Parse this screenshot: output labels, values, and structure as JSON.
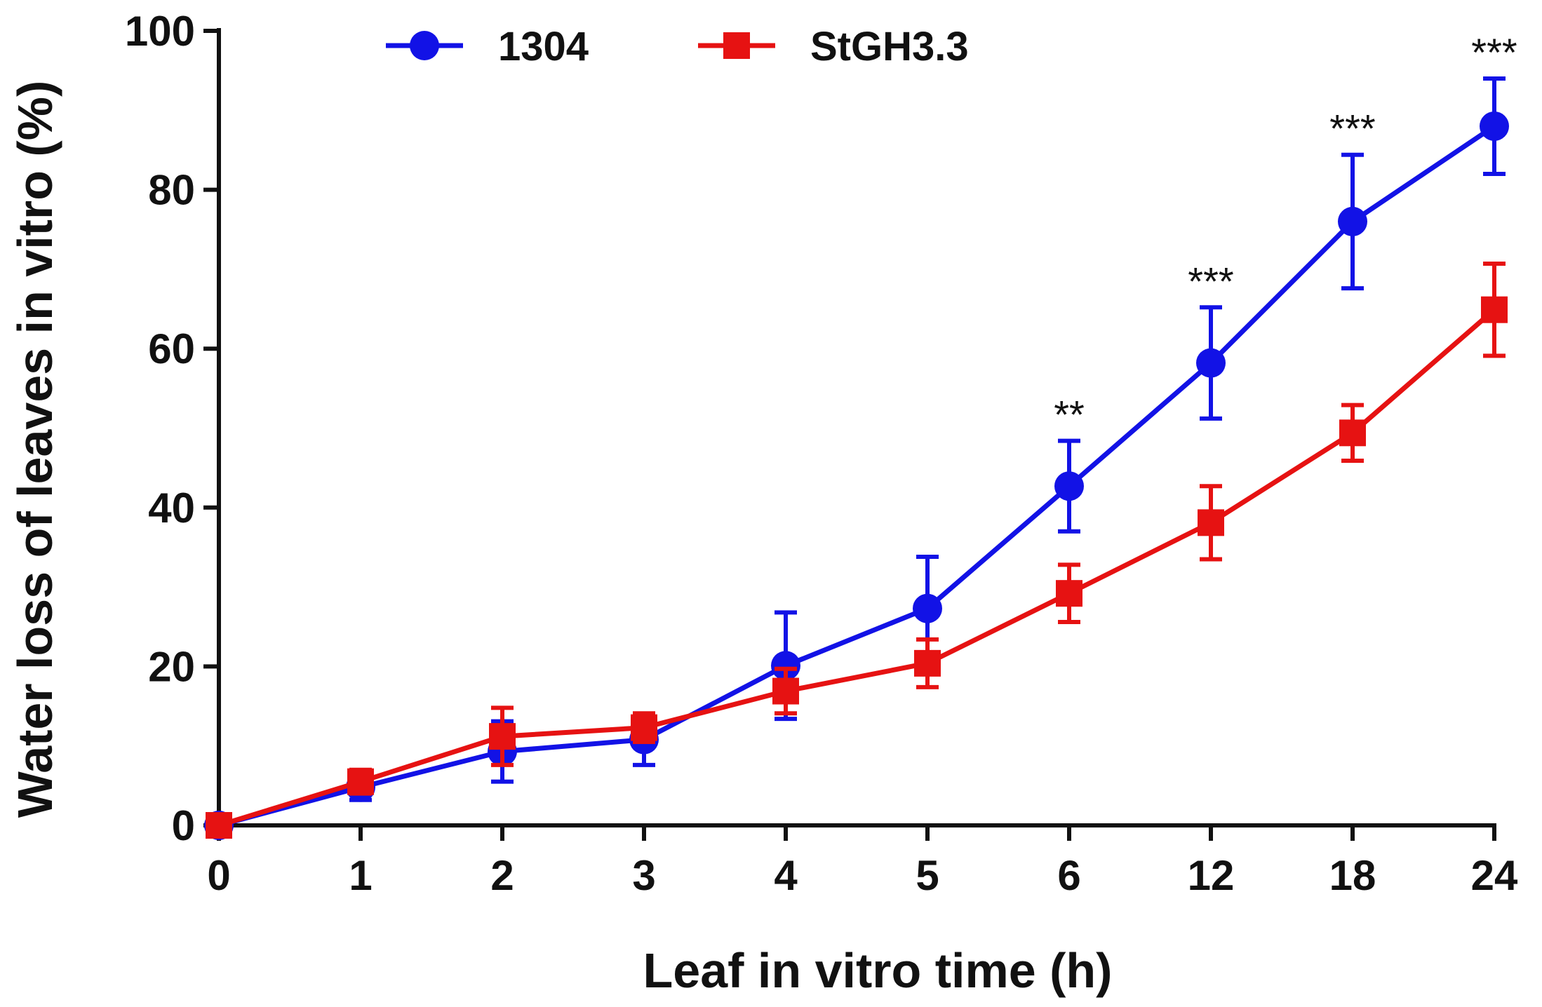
{
  "chart_data": {
    "type": "line",
    "title": "",
    "xlabel": "Leaf in vitro time (h)",
    "ylabel": "Water loss of leaves in vitro (%)",
    "categories": [
      "0",
      "1",
      "2",
      "3",
      "4",
      "5",
      "6",
      "12",
      "18",
      "24"
    ],
    "ylim": [
      0,
      100
    ],
    "yticks": [
      "0",
      "20",
      "40",
      "60",
      "80",
      "100"
    ],
    "grid": false,
    "legend_position": "top-left",
    "series": [
      {
        "name": "1304",
        "color": "#1212e6",
        "marker": "circle",
        "values": [
          0,
          4.8,
          9.3,
          10.8,
          20.1,
          27.3,
          42.7,
          58.2,
          76.0,
          88.0
        ],
        "errors": [
          0,
          1.6,
          3.8,
          3.2,
          6.7,
          6.5,
          5.7,
          7.0,
          8.4,
          6.0
        ]
      },
      {
        "name": "StGH3.3",
        "color": "#e61212",
        "marker": "square",
        "values": [
          0,
          5.5,
          11.2,
          12.3,
          16.9,
          20.4,
          29.2,
          38.1,
          49.4,
          64.9
        ],
        "errors": [
          0,
          1.5,
          3.6,
          1.8,
          2.8,
          3.0,
          3.6,
          4.6,
          3.5,
          5.8
        ]
      }
    ],
    "annotations": [
      {
        "category": "6",
        "text": "**"
      },
      {
        "category": "12",
        "text": "***"
      },
      {
        "category": "18",
        "text": "***"
      },
      {
        "category": "24",
        "text": "***"
      }
    ]
  }
}
